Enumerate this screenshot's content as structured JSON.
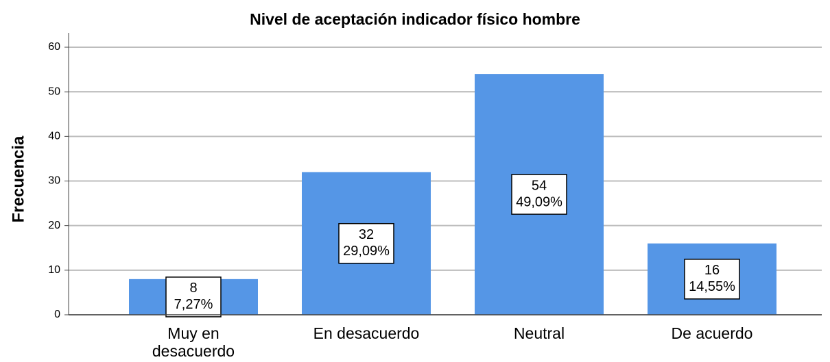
{
  "chart_data": {
    "type": "bar",
    "title": "Nivel de aceptación indicador físico hombre",
    "y_label": "Frecuencia",
    "categories": [
      "Muy en desacuerdo",
      "En desacuerdo",
      "Neutral",
      "De acuerdo"
    ],
    "values": [
      8,
      32,
      54,
      16
    ],
    "percent_values": [
      7.27,
      29.09,
      49.09,
      14.55
    ],
    "percent_labels": [
      "7,27%",
      "29,09%",
      "49,09%",
      "14,55%"
    ],
    "color": "#5596e6",
    "ylim": [
      0,
      60
    ],
    "yticks": [
      0,
      10,
      20,
      30,
      40,
      50,
      60
    ],
    "grid": true
  }
}
